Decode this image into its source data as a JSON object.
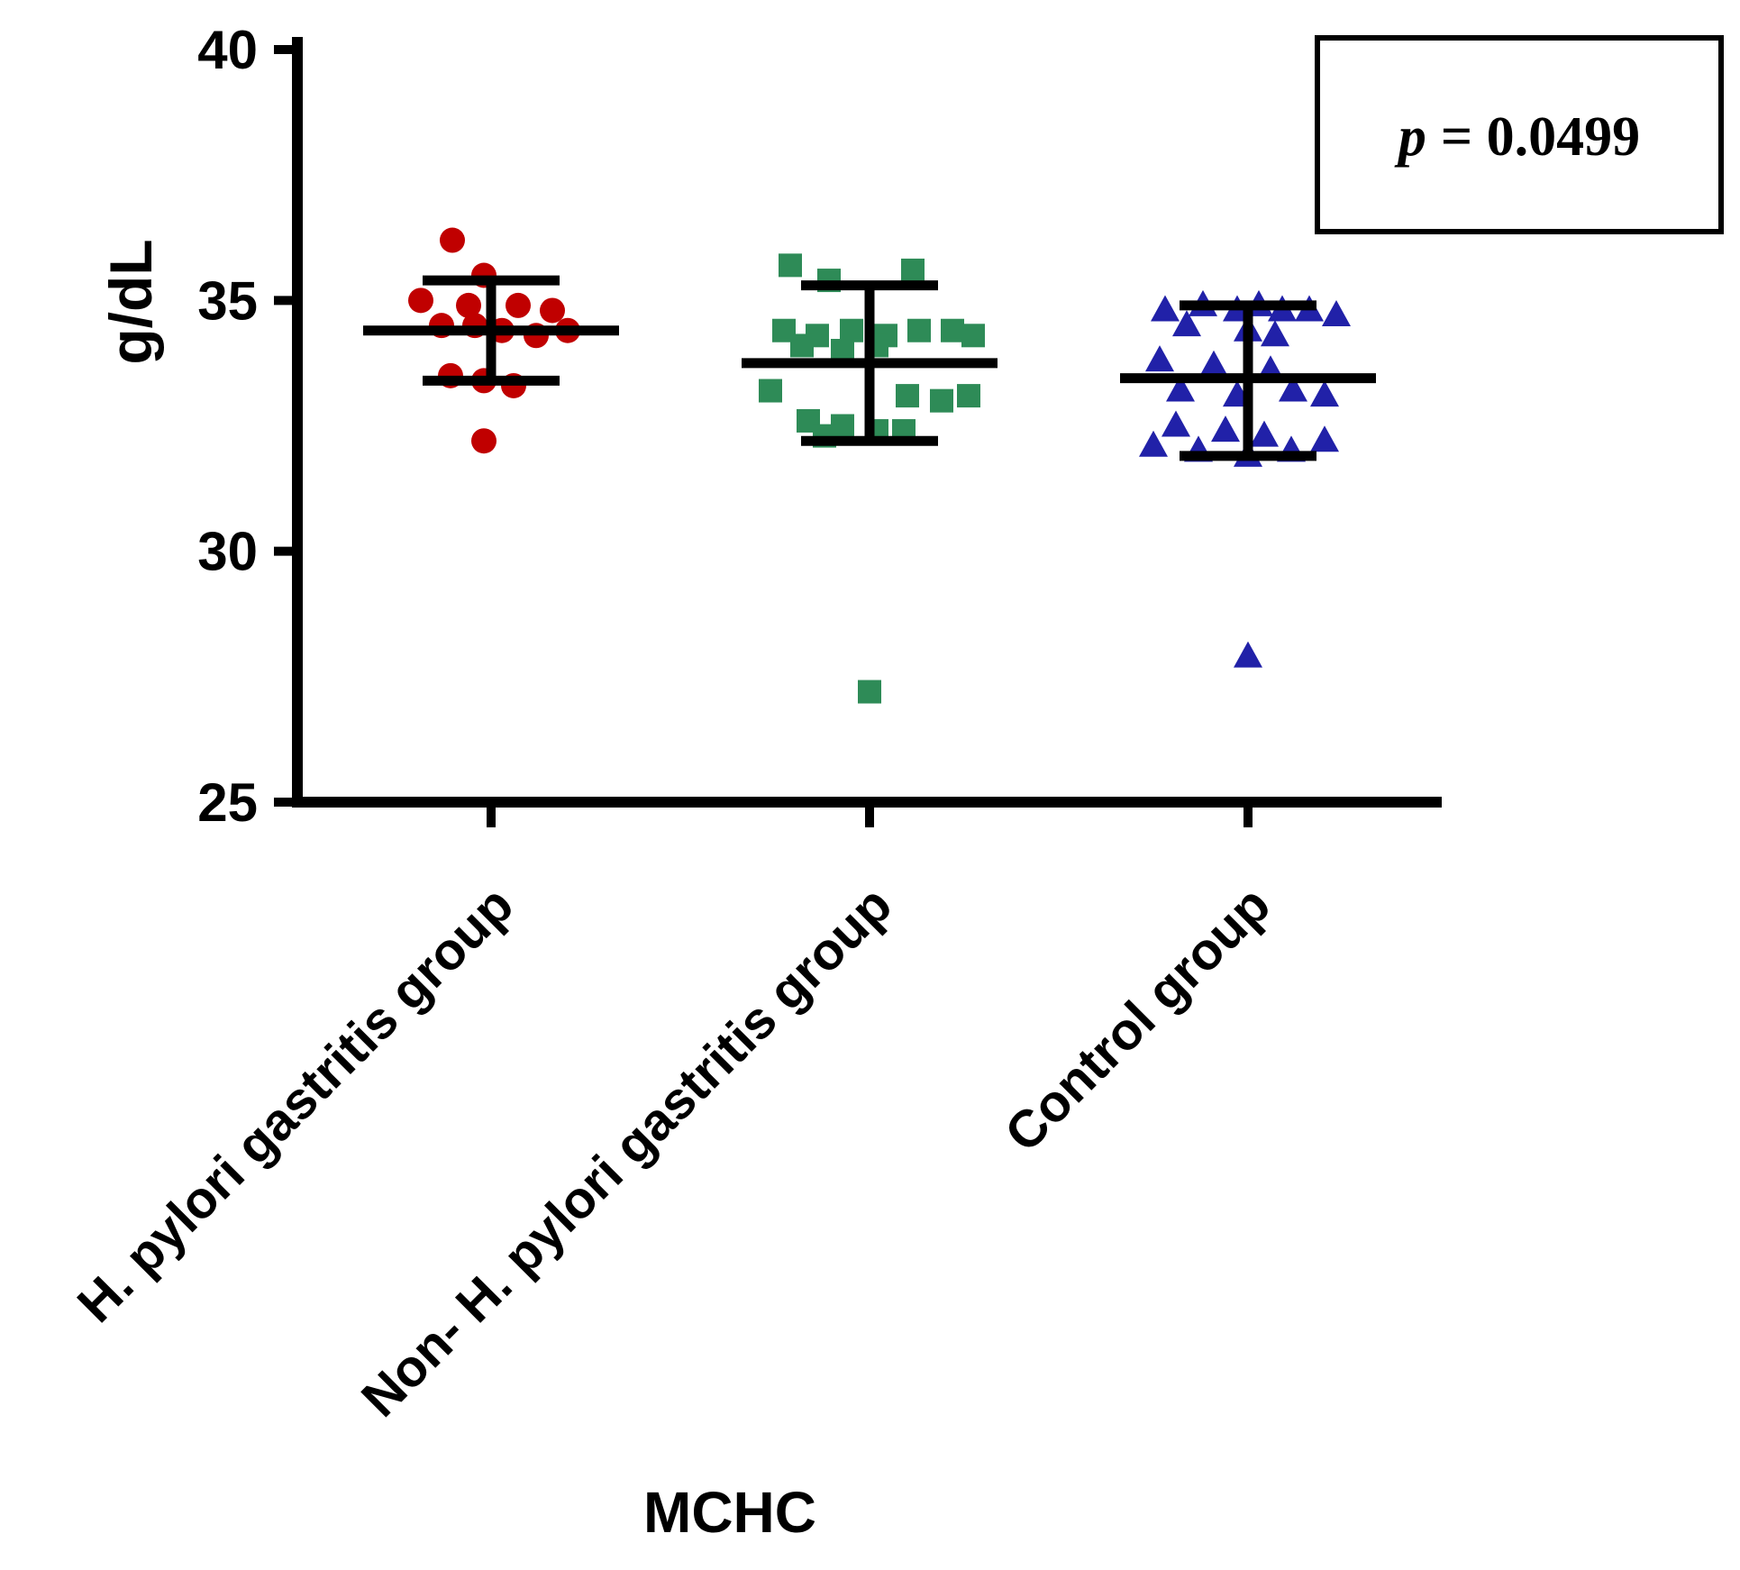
{
  "figure": {
    "background": "#ffffff",
    "axis_color": "#000000"
  },
  "annotation": {
    "p_symbol": "p",
    "p_rest": "= 0.0499",
    "full_text": "p = 0.0499"
  },
  "chart_data": {
    "type": "scatter",
    "title": "",
    "xlabel": "MCHC",
    "ylabel": "g/dL",
    "ylim": [
      25,
      40
    ],
    "yticks": [
      40,
      35,
      30,
      25
    ],
    "grid": false,
    "legend_position": "none",
    "annotation": "p = 0.0499",
    "groups": [
      {
        "label": "H. pylori gastritis group",
        "marker": "circle",
        "color": "#C00000",
        "mean": 34.4,
        "upper": 35.4,
        "lower": 33.4,
        "points": [
          [
            -43,
            36.2
          ],
          [
            -8,
            35.5
          ],
          [
            -78,
            35.0
          ],
          [
            -25,
            34.9
          ],
          [
            30,
            34.9
          ],
          [
            68,
            34.8
          ],
          [
            -55,
            34.5
          ],
          [
            -18,
            34.5
          ],
          [
            12,
            34.4
          ],
          [
            85,
            34.4
          ],
          [
            50,
            34.3
          ],
          [
            -45,
            33.5
          ],
          [
            -8,
            33.4
          ],
          [
            25,
            33.3
          ],
          [
            -8,
            32.2
          ]
        ]
      },
      {
        "label": "Non- H. pylori gastritis group",
        "marker": "square",
        "color": "#2E8B57",
        "mean": 33.75,
        "upper": 35.3,
        "lower": 32.2,
        "points": [
          [
            -88,
            35.7
          ],
          [
            48,
            35.6
          ],
          [
            -45,
            35.4
          ],
          [
            -95,
            34.4
          ],
          [
            -20,
            34.4
          ],
          [
            55,
            34.4
          ],
          [
            92,
            34.4
          ],
          [
            -58,
            34.3
          ],
          [
            18,
            34.3
          ],
          [
            115,
            34.3
          ],
          [
            -75,
            34.1
          ],
          [
            8,
            34.1
          ],
          [
            -30,
            34.0
          ],
          [
            -110,
            33.2
          ],
          [
            42,
            33.1
          ],
          [
            110,
            33.1
          ],
          [
            80,
            33.0
          ],
          [
            -68,
            32.6
          ],
          [
            -30,
            32.5
          ],
          [
            8,
            32.4
          ],
          [
            38,
            32.4
          ],
          [
            -50,
            32.3
          ],
          [
            0,
            27.2
          ]
        ]
      },
      {
        "label": "Control group",
        "marker": "triangle",
        "color": "#2121A8",
        "mean": 33.45,
        "upper": 34.9,
        "lower": 31.9,
        "points": [
          [
            -50,
            34.9
          ],
          [
            12,
            34.9
          ],
          [
            -92,
            34.8
          ],
          [
            -12,
            34.8
          ],
          [
            38,
            34.8
          ],
          [
            68,
            34.8
          ],
          [
            98,
            34.7
          ],
          [
            -68,
            34.5
          ],
          [
            0,
            34.4
          ],
          [
            30,
            34.3
          ],
          [
            -98,
            33.8
          ],
          [
            -38,
            33.7
          ],
          [
            25,
            33.6
          ],
          [
            -75,
            33.2
          ],
          [
            50,
            33.2
          ],
          [
            -12,
            33.1
          ],
          [
            85,
            33.1
          ],
          [
            -80,
            32.5
          ],
          [
            -25,
            32.4
          ],
          [
            18,
            32.3
          ],
          [
            -105,
            32.1
          ],
          [
            -55,
            32.0
          ],
          [
            48,
            32.0
          ],
          [
            85,
            32.2
          ],
          [
            0,
            31.9
          ],
          [
            0,
            27.9
          ]
        ]
      }
    ]
  }
}
